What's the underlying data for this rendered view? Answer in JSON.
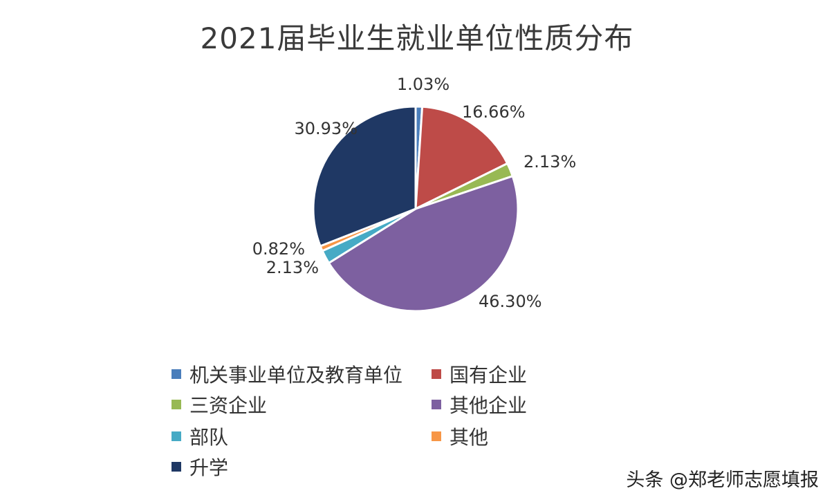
{
  "watermark": "头条 @郑老师志愿填报",
  "chart_data": {
    "type": "pie",
    "title": "2021届毕业生就业单位性质分布",
    "legend_position": "bottom",
    "slices": [
      {
        "label": "机关事业单位及教育单位",
        "value": 1.03,
        "display": "1.03%",
        "color": "#4a7ebb"
      },
      {
        "label": "国有企业",
        "value": 16.66,
        "display": "16.66%",
        "color": "#be4b48"
      },
      {
        "label": "三资企业",
        "value": 2.13,
        "display": "2.13%",
        "color": "#98b954"
      },
      {
        "label": "其他企业",
        "value": 46.3,
        "display": "46.30%",
        "color": "#7d60a0"
      },
      {
        "label": "部队",
        "value": 2.13,
        "display": "2.13%",
        "color": "#46aac5"
      },
      {
        "label": "其他",
        "value": 0.82,
        "display": "0.82%",
        "color": "#f79646"
      },
      {
        "label": "升学",
        "value": 30.93,
        "display": "30.93%",
        "color": "#1f3864"
      }
    ]
  }
}
